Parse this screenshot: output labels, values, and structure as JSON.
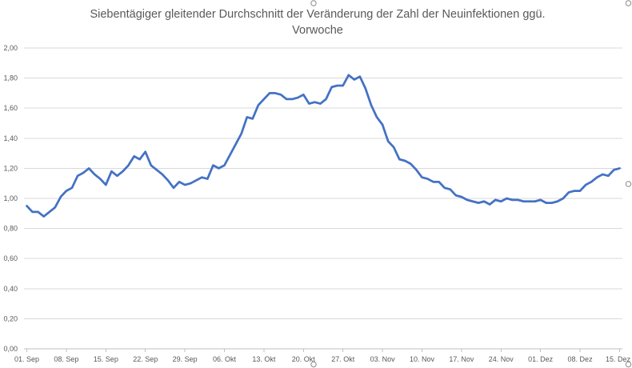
{
  "chart_data": {
    "type": "line",
    "title": "Siebentägiger gleitender Durchschnitt der Veränderung der Zahl der Neuinfektionen ggü. Vorwoche",
    "xlabel": "",
    "ylabel": "",
    "ylim": [
      0,
      2
    ],
    "yticks": [
      {
        "value": 0.0,
        "label": "0,00"
      },
      {
        "value": 0.2,
        "label": "0,20"
      },
      {
        "value": 0.4,
        "label": "0,40"
      },
      {
        "value": 0.6,
        "label": "0,60"
      },
      {
        "value": 0.8,
        "label": "0,80"
      },
      {
        "value": 1.0,
        "label": "1,00"
      },
      {
        "value": 1.2,
        "label": "1,20"
      },
      {
        "value": 1.4,
        "label": "1,40"
      },
      {
        "value": 1.6,
        "label": "1,60"
      },
      {
        "value": 1.8,
        "label": "1,80"
      },
      {
        "value": 2.0,
        "label": "2,00"
      }
    ],
    "xticks": [
      "01. Sep",
      "08. Sep",
      "15. Sep",
      "22. Sep",
      "29. Sep",
      "06. Okt",
      "13. Okt",
      "20. Okt",
      "27. Okt",
      "03. Nov",
      "10. Nov",
      "17. Nov",
      "24. Nov",
      "01. Dez",
      "08. Dez",
      "15. Dez"
    ],
    "series": [
      {
        "values": [
          0.95,
          0.91,
          0.91,
          0.88,
          0.91,
          0.94,
          1.01,
          1.05,
          1.07,
          1.15,
          1.17,
          1.2,
          1.16,
          1.13,
          1.09,
          1.18,
          1.15,
          1.18,
          1.22,
          1.28,
          1.26,
          1.31,
          1.22,
          1.19,
          1.16,
          1.12,
          1.07,
          1.11,
          1.09,
          1.1,
          1.12,
          1.14,
          1.13,
          1.22,
          1.2,
          1.22,
          1.29,
          1.36,
          1.43,
          1.54,
          1.53,
          1.62,
          1.66,
          1.7,
          1.7,
          1.69,
          1.66,
          1.66,
          1.67,
          1.69,
          1.63,
          1.64,
          1.63,
          1.66,
          1.74,
          1.75,
          1.75,
          1.82,
          1.79,
          1.81,
          1.73,
          1.62,
          1.54,
          1.49,
          1.38,
          1.34,
          1.26,
          1.25,
          1.23,
          1.19,
          1.14,
          1.13,
          1.11,
          1.11,
          1.07,
          1.06,
          1.02,
          1.01,
          0.99,
          0.98,
          0.97,
          0.98,
          0.96,
          0.99,
          0.98,
          1.0,
          0.99,
          0.99,
          0.98,
          0.98,
          0.98,
          0.99,
          0.97,
          0.97,
          0.98,
          1.0,
          1.04,
          1.05,
          1.05,
          1.09,
          1.11,
          1.14,
          1.16,
          1.15,
          1.19,
          1.2
        ]
      }
    ],
    "legend": "none",
    "grid": true,
    "colors": {
      "line": "#4472C4",
      "grid": "#D9D9D9",
      "axis": "#BFBFBF",
      "text": "#595959",
      "handle_stroke": "#8C8C8C",
      "handle_fill": "#FFFFFF"
    }
  }
}
